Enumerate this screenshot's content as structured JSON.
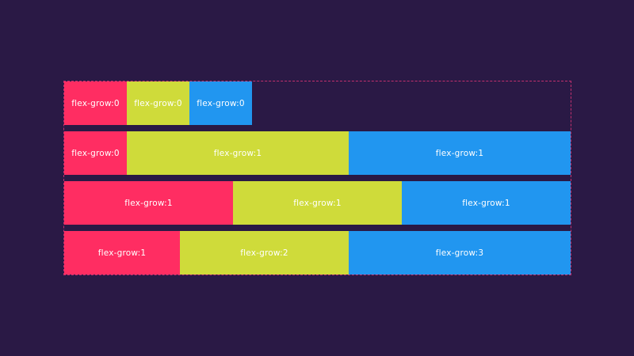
{
  "colors": {
    "background": "#2a1945",
    "container_border": "#c2306e",
    "pink": "#ff2d62",
    "lime": "#cfdb3a",
    "blue": "#2196f0",
    "text": "#ffffff"
  },
  "rows": [
    {
      "items": [
        {
          "label": "flex-grow:0",
          "color": "pink",
          "grow": 0
        },
        {
          "label": "flex-grow:0",
          "color": "lime",
          "grow": 0
        },
        {
          "label": "flex-grow:0",
          "color": "blue",
          "grow": 0
        }
      ]
    },
    {
      "items": [
        {
          "label": "flex-grow:0",
          "color": "pink",
          "grow": 0
        },
        {
          "label": "flex-grow:1",
          "color": "lime",
          "grow": 1
        },
        {
          "label": "flex-grow:1",
          "color": "blue",
          "grow": 1
        }
      ]
    },
    {
      "items": [
        {
          "label": "flex-grow:1",
          "color": "pink",
          "grow": 1
        },
        {
          "label": "flex-grow:1",
          "color": "lime",
          "grow": 1
        },
        {
          "label": "flex-grow:1",
          "color": "blue",
          "grow": 1
        }
      ]
    },
    {
      "items": [
        {
          "label": "flex-grow:1",
          "color": "pink",
          "grow": 1
        },
        {
          "label": "flex-grow:2",
          "color": "lime",
          "grow": 2
        },
        {
          "label": "flex-grow:3",
          "color": "blue",
          "grow": 3
        }
      ]
    }
  ]
}
